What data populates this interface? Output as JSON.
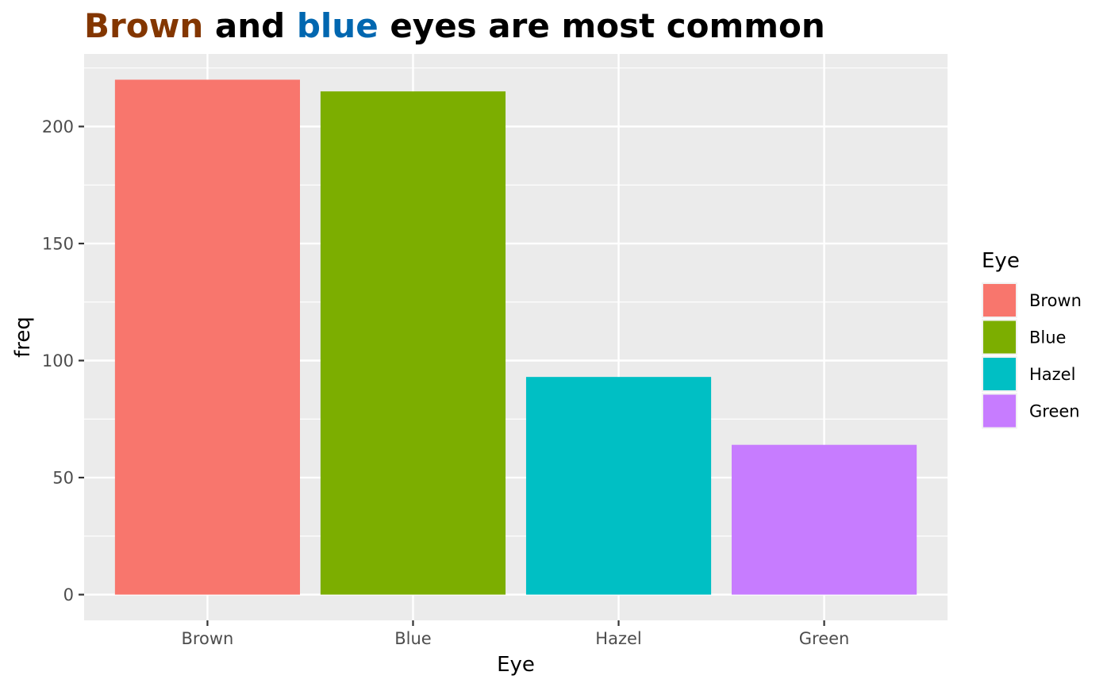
{
  "chart_data": {
    "type": "bar",
    "title_parts": [
      {
        "text": "Brown",
        "color": "#833600"
      },
      {
        "text": " and ",
        "color": "#000000"
      },
      {
        "text": "blue",
        "color": "#0167b0"
      },
      {
        "text": " eyes are most common",
        "color": "#000000"
      }
    ],
    "categories": [
      "Brown",
      "Blue",
      "Hazel",
      "Green"
    ],
    "values": [
      220,
      215,
      93,
      64
    ],
    "colors": [
      "#F8766D",
      "#7CAE00",
      "#00BFC4",
      "#C77CFF"
    ],
    "xlabel": "Eye",
    "ylabel": "freq",
    "ylim": [
      -11,
      231
    ],
    "yticks": [
      0,
      50,
      100,
      150,
      200
    ],
    "grid": true,
    "panel_background": "#EBEBEB",
    "legend": {
      "title": "Eye",
      "position": "right",
      "items": [
        "Brown",
        "Blue",
        "Hazel",
        "Green"
      ]
    }
  }
}
